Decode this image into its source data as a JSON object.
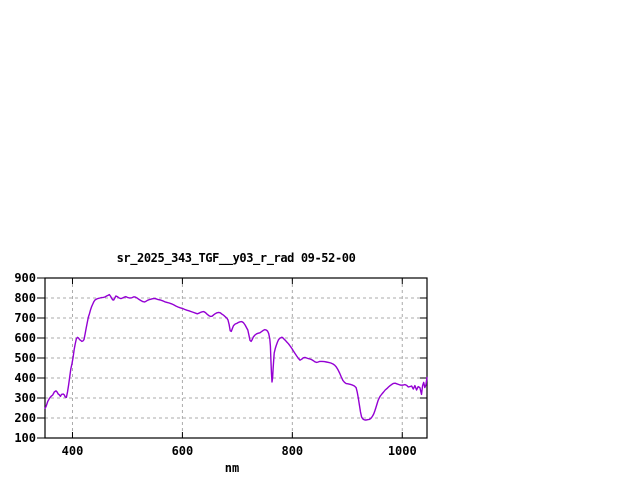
{
  "chart_data": {
    "type": "line",
    "title": "sr_2025_343_TGF__y03_r_rad 09-52-00",
    "xlabel": "nm",
    "ylabel": "",
    "xlim": [
      350,
      1045
    ],
    "ylim": [
      100,
      900
    ],
    "xticks": [
      400,
      600,
      800,
      1000
    ],
    "yticks": [
      100,
      200,
      300,
      400,
      500,
      600,
      700,
      800,
      900
    ],
    "xtick_labels": [
      "400",
      "600",
      "800",
      "1000"
    ],
    "ytick_labels": [
      "100",
      "200",
      "300",
      "400",
      "500",
      "600",
      "700",
      "800",
      "900"
    ],
    "grid": true,
    "legend": "none",
    "line_color": "#9400d3",
    "grid_color": "#ababab",
    "frame_color": "#000000",
    "background_color": "#ffffff",
    "series": [
      {
        "name": "sr_2025_343_TGF__y03_r_rad",
        "x": [
          350,
          352,
          355,
          358,
          361,
          364,
          367,
          370,
          372,
          374,
          376,
          378,
          380,
          383,
          385,
          387,
          389,
          391,
          393,
          395,
          397,
          399,
          401,
          403,
          405,
          407,
          409,
          411,
          413,
          415,
          417,
          419,
          421,
          423,
          425,
          427,
          429,
          431,
          433,
          435,
          437,
          439,
          441,
          444,
          447,
          450,
          453,
          456,
          459,
          462,
          465,
          467,
          469,
          471,
          473,
          475,
          477,
          479,
          482,
          485,
          488,
          491,
          494,
          497,
          500,
          504,
          508,
          512,
          515,
          518,
          521,
          524,
          528,
          531,
          534,
          537,
          541,
          545,
          549,
          552,
          556,
          560,
          564,
          568,
          572,
          576,
          580,
          584,
          588,
          592,
          596,
          600,
          604,
          608,
          612,
          616,
          620,
          624,
          627,
          630,
          633,
          636,
          639,
          642,
          645,
          648,
          651,
          654,
          657,
          660,
          663,
          666,
          669,
          672,
          675,
          678,
          681,
          683,
          685,
          687,
          689,
          691,
          693,
          696,
          699,
          702,
          705,
          708,
          711,
          714,
          717,
          719,
          721,
          723,
          725,
          727,
          729,
          732,
          735,
          738,
          741,
          744,
          747,
          750,
          753,
          755,
          757,
          759,
          760,
          761,
          762,
          763,
          764,
          765,
          766,
          767,
          769,
          771,
          773,
          775,
          777,
          779,
          781,
          783,
          785,
          787,
          790,
          793,
          796,
          799,
          802,
          805,
          808,
          811,
          814,
          817,
          820,
          823,
          826,
          829,
          832,
          835,
          838,
          841,
          844,
          847,
          850,
          854,
          858,
          862,
          866,
          870,
          874,
          877,
          880,
          883,
          886,
          889,
          892,
          895,
          898,
          901,
          904,
          907,
          910,
          913,
          916,
          918,
          920,
          922,
          924,
          926,
          928,
          930,
          932,
          934,
          936,
          938,
          940,
          942,
          944,
          946,
          948,
          950,
          952,
          954,
          956,
          958,
          960,
          963,
          966,
          969,
          972,
          975,
          978,
          981,
          984,
          987,
          990,
          993,
          996,
          999,
          1002,
          1005,
          1008,
          1011,
          1014,
          1017,
          1020,
          1023,
          1026,
          1029,
          1032,
          1035,
          1037,
          1039,
          1041,
          1043,
          1045
        ],
        "y": [
          248,
          258,
          282,
          298,
          308,
          315,
          330,
          336,
          330,
          320,
          316,
          308,
          318,
          320,
          316,
          305,
          303,
          330,
          365,
          405,
          445,
          470,
          500,
          540,
          570,
          595,
          603,
          600,
          592,
          588,
          583,
          585,
          592,
          620,
          650,
          678,
          705,
          722,
          742,
          758,
          770,
          782,
          790,
          795,
          798,
          800,
          802,
          803,
          805,
          810,
          814,
          817,
          810,
          800,
          791,
          790,
          800,
          810,
          806,
          800,
          797,
          800,
          804,
          807,
          803,
          800,
          801,
          806,
          804,
          799,
          793,
          788,
          782,
          780,
          784,
          789,
          793,
          796,
          798,
          796,
          792,
          790,
          786,
          781,
          778,
          775,
          771,
          766,
          760,
          755,
          751,
          748,
          743,
          739,
          736,
          732,
          728,
          724,
          721,
          724,
          728,
          731,
          732,
          727,
          719,
          712,
          708,
          709,
          716,
          722,
          726,
          728,
          726,
          719,
          714,
          706,
          699,
          690,
          668,
          636,
          633,
          648,
          662,
          670,
          673,
          678,
          681,
          682,
          677,
          665,
          650,
          640,
          615,
          588,
          583,
          592,
          605,
          615,
          621,
          624,
          626,
          632,
          638,
          642,
          639,
          634,
          622,
          595,
          560,
          490,
          420,
          380,
          400,
          445,
          490,
          525,
          548,
          565,
          580,
          592,
          598,
          601,
          604,
          600,
          594,
          589,
          580,
          571,
          560,
          548,
          535,
          522,
          510,
          498,
          489,
          494,
          501,
          503,
          500,
          497,
          495,
          492,
          487,
          481,
          478,
          480,
          483,
          483,
          482,
          480,
          478,
          475,
          470,
          464,
          455,
          441,
          425,
          405,
          388,
          378,
          372,
          371,
          369,
          367,
          364,
          360,
          352,
          330,
          300,
          265,
          230,
          205,
          196,
          192,
          190,
          190,
          191,
          192,
          193,
          196,
          202,
          210,
          220,
          235,
          252,
          270,
          288,
          300,
          310,
          320,
          330,
          340,
          347,
          355,
          362,
          368,
          373,
          374,
          371,
          368,
          365,
          364,
          365,
          367,
          363,
          355,
          357,
          360,
          345,
          362,
          340,
          357,
          352,
          318,
          362,
          378,
          352,
          365,
          403
        ]
      }
    ]
  }
}
